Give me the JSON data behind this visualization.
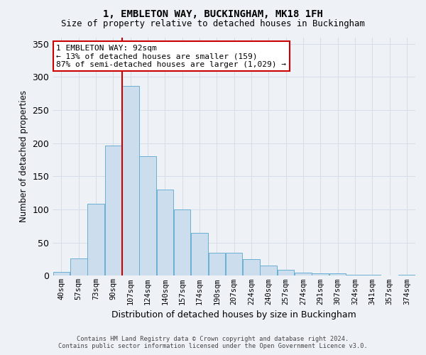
{
  "title": "1, EMBLETON WAY, BUCKINGHAM, MK18 1FH",
  "subtitle": "Size of property relative to detached houses in Buckingham",
  "xlabel": "Distribution of detached houses by size in Buckingham",
  "ylabel": "Number of detached properties",
  "footer_line1": "Contains HM Land Registry data © Crown copyright and database right 2024.",
  "footer_line2": "Contains public sector information licensed under the Open Government Licence v3.0.",
  "bar_labels": [
    "40sqm",
    "57sqm",
    "73sqm",
    "90sqm",
    "107sqm",
    "124sqm",
    "140sqm",
    "157sqm",
    "174sqm",
    "190sqm",
    "207sqm",
    "224sqm",
    "240sqm",
    "257sqm",
    "274sqm",
    "291sqm",
    "307sqm",
    "324sqm",
    "341sqm",
    "357sqm",
    "374sqm"
  ],
  "bar_values": [
    6,
    26,
    109,
    197,
    287,
    180,
    130,
    100,
    65,
    35,
    35,
    25,
    15,
    9,
    5,
    4,
    4,
    1,
    1,
    0,
    2
  ],
  "bar_color": "#ccdded",
  "bar_edge_color": "#6aafd4",
  "property_line_index": 3,
  "annotation_text": "1 EMBLETON WAY: 92sqm\n← 13% of detached houses are smaller (159)\n87% of semi-detached houses are larger (1,029) →",
  "annotation_box_color": "#ffffff",
  "annotation_border_color": "#cc0000",
  "ylim": [
    0,
    360
  ],
  "yticks": [
    0,
    50,
    100,
    150,
    200,
    250,
    300,
    350
  ],
  "grid_color": "#d4dde8",
  "vline_color": "#cc0000",
  "background_color": "#eef2f7"
}
